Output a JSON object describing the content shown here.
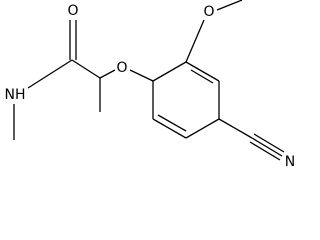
{
  "nodes": [
    {
      "label": "O"
    },
    {
      "label": "NH"
    },
    {
      "label": "O"
    },
    {
      "label": "O"
    },
    {
      "label": "N"
    }
  ]
}
